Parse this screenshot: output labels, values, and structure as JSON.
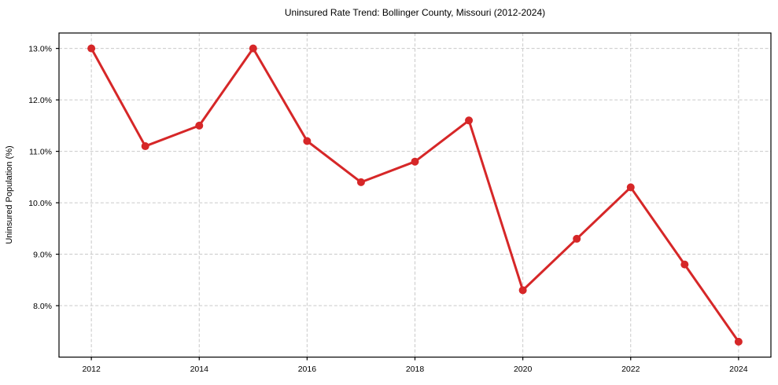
{
  "chart_data": {
    "type": "line",
    "title": "Uninsured Rate Trend: Bollinger County, Missouri (2012-2024)",
    "xlabel": "",
    "ylabel": "Uninsured Population (%)",
    "x": [
      2012,
      2013,
      2014,
      2015,
      2016,
      2017,
      2018,
      2019,
      2020,
      2021,
      2022,
      2023,
      2024
    ],
    "values": [
      13.0,
      11.1,
      11.5,
      13.0,
      11.2,
      10.4,
      10.8,
      11.6,
      8.3,
      9.3,
      10.3,
      8.8,
      7.3
    ],
    "series_name": "Uninsured Population (%)",
    "x_ticks": [
      2012,
      2014,
      2016,
      2018,
      2020,
      2022,
      2024
    ],
    "x_tick_labels": [
      "2012",
      "2014",
      "2016",
      "2018",
      "2020",
      "2022",
      "2024"
    ],
    "y_ticks": [
      8.0,
      9.0,
      10.0,
      11.0,
      12.0,
      13.0
    ],
    "y_tick_labels": [
      "8.0%",
      "9.0%",
      "10.0%",
      "11.0%",
      "12.0%",
      "13.0%"
    ],
    "xlim": [
      2011.4,
      2024.6
    ],
    "ylim": [
      7.0,
      13.3
    ],
    "grid": true,
    "grid_style": "dashed",
    "legend": "none",
    "style": {
      "line_color": "#d62728",
      "marker_color": "#d62728",
      "grid_color": "#c9c9c9",
      "spine_color": "#000000",
      "background_color": "#ffffff",
      "text_color": "#000000"
    }
  }
}
